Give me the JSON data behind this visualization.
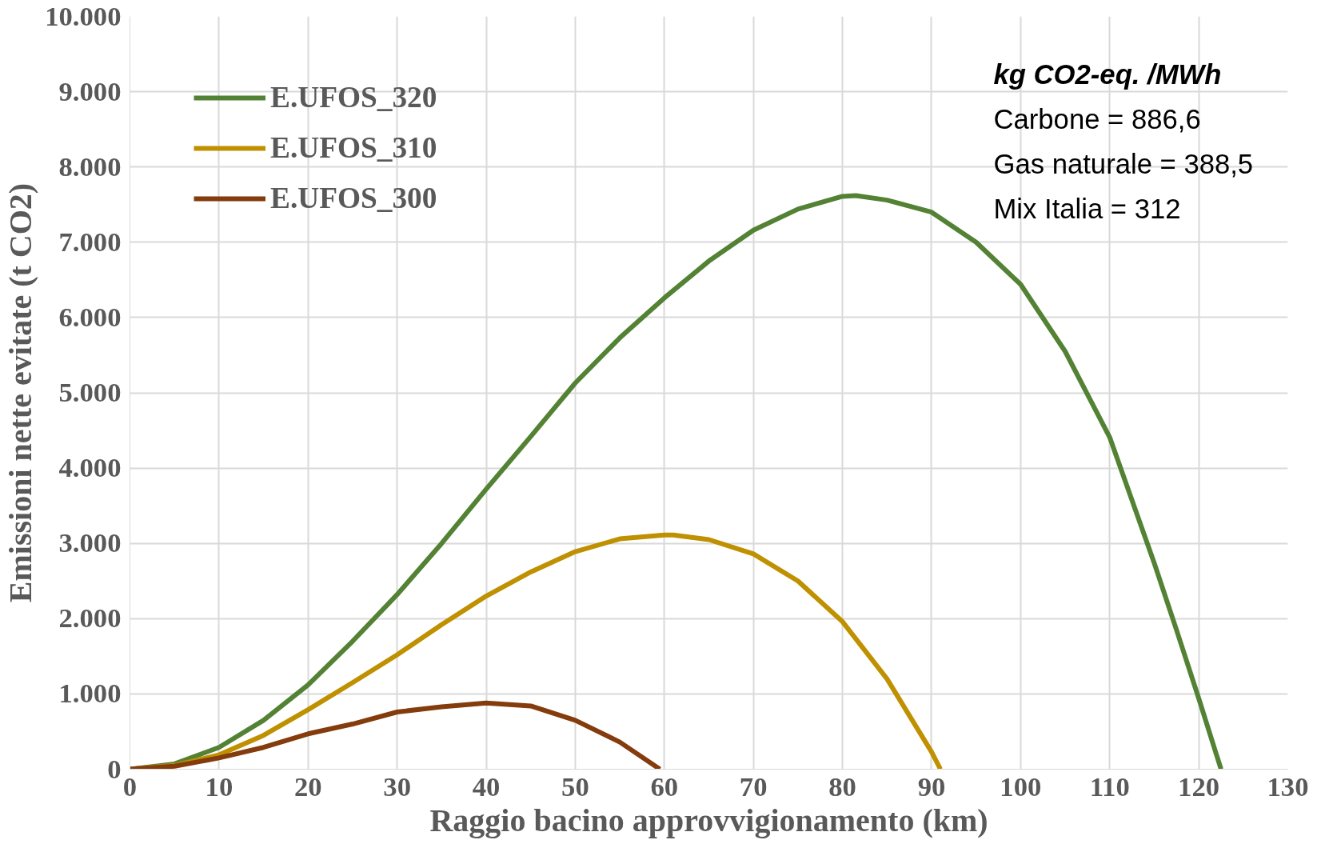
{
  "chart_data": {
    "type": "line",
    "xlabel": "Raggio bacino approvvigionamento (km)",
    "ylabel": "Emissioni nette evitate (t CO2)",
    "annotations": [
      "kg CO2-eq. /MWh",
      "Carbone = 886,6",
      "Gas naturale = 388,5",
      "Mix Italia = 312"
    ],
    "xlim": [
      0,
      130
    ],
    "xticks": [
      0,
      10,
      20,
      30,
      40,
      50,
      60,
      70,
      80,
      90,
      100,
      110,
      120,
      130
    ],
    "ylim": [
      0,
      10000
    ],
    "yticks": [
      {
        "value": 0,
        "label": "0"
      },
      {
        "value": 1000,
        "label": "1.000"
      },
      {
        "value": 2000,
        "label": "2.000"
      },
      {
        "value": 3000,
        "label": "3.000"
      },
      {
        "value": 4000,
        "label": "4.000"
      },
      {
        "value": 5000,
        "label": "5.000"
      },
      {
        "value": 6000,
        "label": "6.000"
      },
      {
        "value": 7000,
        "label": "7.000"
      },
      {
        "value": 8000,
        "label": "8.000"
      },
      {
        "value": 9000,
        "label": "9.000"
      },
      {
        "value": 10000,
        "label": "10.000"
      }
    ],
    "grid": true,
    "legend": "top left",
    "line_style": "solid",
    "series": [
      {
        "name": "E.UFOS_320",
        "color": "#548235",
        "x": [
          0,
          5,
          10,
          15,
          20,
          25,
          30,
          35,
          40,
          45,
          50,
          55,
          60,
          65,
          70,
          75,
          80,
          81.5,
          85,
          90,
          95,
          100,
          105,
          110,
          115,
          117.5,
          120,
          122.5
        ],
        "values": [
          0,
          70,
          290,
          650,
          1120,
          1700,
          2320,
          3000,
          3720,
          4420,
          5130,
          5730,
          6260,
          6750,
          7160,
          7440,
          7610,
          7620,
          7560,
          7400,
          7000,
          6440,
          5550,
          4410,
          2740,
          1850,
          940,
          0
        ]
      },
      {
        "name": "E.UFOS_310",
        "color": "#bf9000",
        "x": [
          0,
          5,
          10,
          15,
          20,
          25,
          30,
          35,
          40,
          45,
          50,
          55,
          60,
          61,
          65,
          70,
          75,
          80,
          85,
          90,
          91
        ],
        "values": [
          0,
          50,
          190,
          450,
          790,
          1150,
          1520,
          1920,
          2300,
          2620,
          2890,
          3060,
          3110,
          3110,
          3050,
          2860,
          2500,
          1960,
          1200,
          230,
          0
        ]
      },
      {
        "name": "E.UFOS_300",
        "color": "#843c0c",
        "x": [
          0,
          5,
          10,
          15,
          20,
          25,
          30,
          35,
          40,
          45,
          50,
          55,
          59.5
        ],
        "values": [
          0,
          40,
          150,
          290,
          470,
          600,
          760,
          830,
          880,
          840,
          650,
          360,
          0
        ]
      }
    ]
  }
}
